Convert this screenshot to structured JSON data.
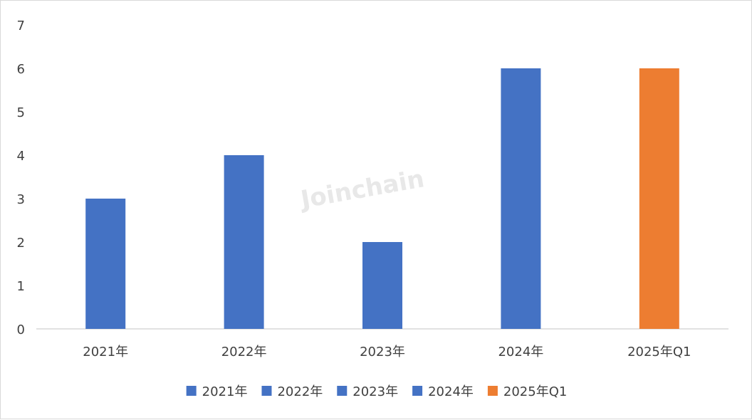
{
  "chart_data": {
    "type": "bar",
    "categories": [
      "2021年",
      "2022年",
      "2023年",
      "2024年",
      "2025年Q1"
    ],
    "values": [
      3,
      4,
      2,
      6,
      6
    ],
    "bar_colors": [
      "#4472C4",
      "#4472C4",
      "#4472C4",
      "#4472C4",
      "#ED7D31"
    ],
    "legend": [
      "2021年",
      "2022年",
      "2023年",
      "2024年",
      "2025年Q1"
    ],
    "legend_position": "bottom",
    "ylim": [
      0,
      7
    ],
    "yticks": [
      "0",
      "1",
      "2",
      "3",
      "4",
      "5",
      "6",
      "7"
    ],
    "grid": false,
    "title": "",
    "xlabel": "",
    "ylabel": ""
  },
  "watermark": "Joinchain"
}
